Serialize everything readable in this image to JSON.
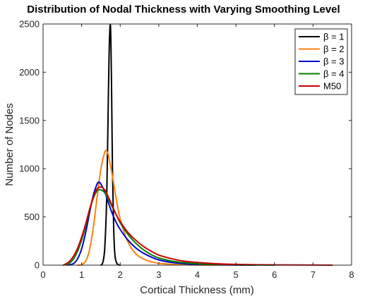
{
  "chart_data": {
    "type": "line",
    "title": "Distribution of Nodal Thickness with Varying Smoothing Level",
    "xlabel": "Cortical Thickness (mm)",
    "ylabel": "Number of Nodes",
    "xlim": [
      0,
      8
    ],
    "ylim": [
      0,
      2500
    ],
    "xticks": [
      0,
      1,
      2,
      3,
      4,
      5,
      6,
      7,
      8
    ],
    "yticks": [
      0,
      500,
      1000,
      1500,
      2000,
      2500
    ],
    "grid": false,
    "legend_position": "top-right",
    "series": [
      {
        "name": "β = 1",
        "color": "#000000",
        "x": [
          1.5,
          1.55,
          1.6,
          1.65,
          1.68,
          1.71,
          1.74,
          1.76,
          1.78,
          1.8,
          1.83,
          1.86,
          1.9,
          1.95,
          2.0
        ],
        "y": [
          0,
          30,
          180,
          700,
          1400,
          2150,
          2490,
          2300,
          1700,
          1000,
          400,
          120,
          30,
          5,
          0
        ]
      },
      {
        "name": "β = 2",
        "color": "#FF7F0E",
        "x": [
          0.9,
          1.0,
          1.1,
          1.2,
          1.3,
          1.4,
          1.5,
          1.6,
          1.65,
          1.7,
          1.8,
          1.9,
          2.0,
          2.2,
          2.4,
          2.6,
          2.8,
          3.0,
          3.3,
          3.6,
          4.0,
          4.5
        ],
        "y": [
          0,
          5,
          40,
          150,
          380,
          700,
          1000,
          1170,
          1180,
          1130,
          920,
          680,
          480,
          240,
          120,
          65,
          35,
          20,
          10,
          5,
          2,
          0
        ]
      },
      {
        "name": "β = 3",
        "color": "#0000CC",
        "x": [
          0.65,
          0.8,
          0.9,
          1.0,
          1.1,
          1.2,
          1.3,
          1.4,
          1.45,
          1.5,
          1.6,
          1.7,
          1.8,
          1.9,
          2.0,
          2.2,
          2.4,
          2.6,
          2.8,
          3.0,
          3.3,
          3.6,
          4.0,
          4.5,
          5.0,
          5.5
        ],
        "y": [
          0,
          20,
          70,
          170,
          330,
          530,
          720,
          840,
          860,
          840,
          760,
          640,
          530,
          440,
          370,
          260,
          180,
          125,
          85,
          55,
          30,
          18,
          8,
          3,
          1,
          0
        ]
      },
      {
        "name": "β = 4",
        "color": "#008000",
        "x": [
          0.6,
          0.7,
          0.8,
          0.9,
          1.0,
          1.1,
          1.2,
          1.3,
          1.4,
          1.5,
          1.6,
          1.7,
          1.8,
          1.9,
          2.0,
          2.2,
          2.4,
          2.6,
          2.8,
          3.0,
          3.3,
          3.6,
          4.0,
          4.5,
          5.0,
          5.5,
          6.0
        ],
        "y": [
          0,
          25,
          70,
          150,
          260,
          400,
          560,
          690,
          770,
          780,
          750,
          680,
          600,
          520,
          440,
          320,
          230,
          160,
          110,
          75,
          45,
          28,
          15,
          6,
          2,
          1,
          0
        ]
      },
      {
        "name": "M50",
        "color": "#CC0000",
        "x": [
          0.52,
          0.6,
          0.7,
          0.8,
          0.9,
          1.0,
          1.1,
          1.2,
          1.3,
          1.4,
          1.5,
          1.6,
          1.7,
          1.8,
          1.9,
          2.0,
          2.2,
          2.4,
          2.6,
          2.8,
          3.0,
          3.3,
          3.6,
          4.0,
          4.5,
          5.0,
          5.5,
          6.0,
          6.5,
          7.0,
          7.5
        ],
        "y": [
          0,
          15,
          45,
          100,
          180,
          290,
          420,
          570,
          700,
          790,
          810,
          780,
          700,
          610,
          520,
          450,
          340,
          260,
          195,
          145,
          105,
          70,
          45,
          28,
          15,
          8,
          5,
          3,
          2,
          1,
          0
        ]
      }
    ]
  }
}
